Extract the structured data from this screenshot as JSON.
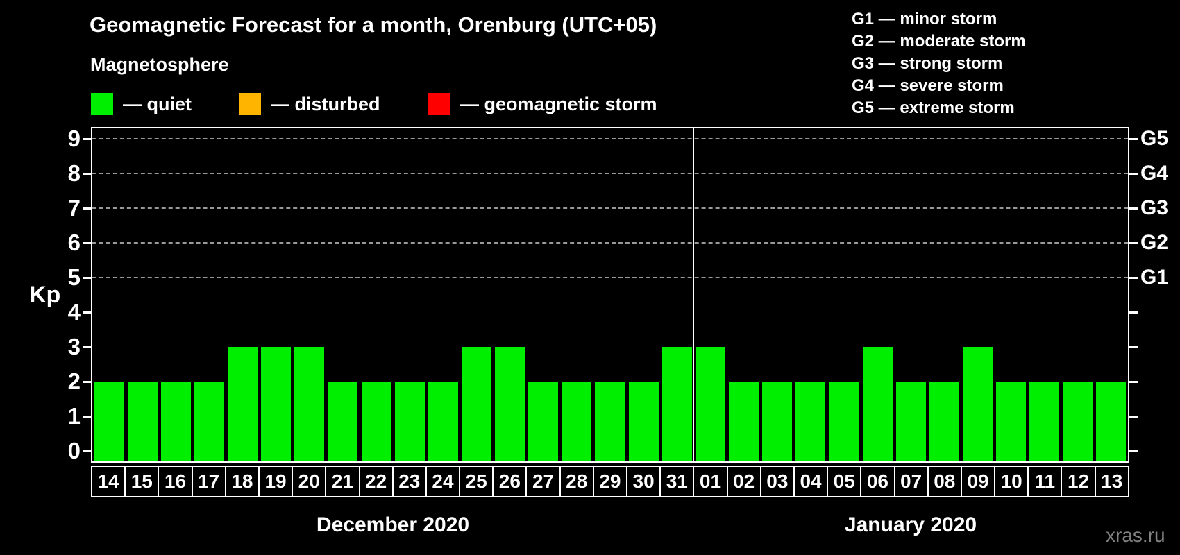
{
  "header": {
    "title": "Geomagnetic Forecast for a month, Orenburg (UTC+05)",
    "subtitle": "Magnetosphere"
  },
  "legend": {
    "items": [
      {
        "name": "quiet",
        "label": "— quiet",
        "color": "#00ee00"
      },
      {
        "name": "disturbed",
        "label": "— disturbed",
        "color": "#ffb400"
      },
      {
        "name": "geomagnetic-storm",
        "label": "— geomagnetic storm",
        "color": "#ff0000"
      }
    ],
    "g_levels": [
      {
        "label": "G1 — minor storm"
      },
      {
        "label": "G2 — moderate storm"
      },
      {
        "label": "G3 — strong storm"
      },
      {
        "label": "G4 — severe storm"
      },
      {
        "label": "G5 — extreme storm"
      }
    ]
  },
  "chart_data": {
    "type": "bar",
    "title": "Geomagnetic Forecast for a month, Orenburg (UTC+05)",
    "ylabel": "Kp",
    "ylim": [
      0,
      9
    ],
    "yticks": [
      0,
      1,
      2,
      3,
      4,
      5,
      6,
      7,
      8,
      9
    ],
    "grid": "dashed horizontal lines only at G levels (Kp 5-9)",
    "grid_levels": [
      5,
      6,
      7,
      8,
      9
    ],
    "grid_color": "#999999",
    "right_axis_labels": [
      {
        "level": 5,
        "label": "G1"
      },
      {
        "level": 6,
        "label": "G2"
      },
      {
        "level": 7,
        "label": "G3"
      },
      {
        "level": 8,
        "label": "G4"
      },
      {
        "level": 9,
        "label": "G5"
      }
    ],
    "categories": [
      "14",
      "15",
      "16",
      "17",
      "18",
      "19",
      "20",
      "21",
      "22",
      "23",
      "24",
      "25",
      "26",
      "27",
      "28",
      "29",
      "30",
      "31",
      "01",
      "02",
      "03",
      "04",
      "05",
      "06",
      "07",
      "08",
      "09",
      "10",
      "11",
      "12",
      "13"
    ],
    "values": [
      2,
      2,
      2,
      2,
      3,
      3,
      3,
      2,
      2,
      2,
      2,
      3,
      3,
      2,
      2,
      2,
      2,
      3,
      3,
      2,
      2,
      2,
      2,
      3,
      2,
      2,
      3,
      2,
      2,
      2,
      2
    ],
    "bar_color": "#00ee00",
    "months": [
      {
        "label": "December 2020",
        "days": 18
      },
      {
        "label": "January 2020",
        "days": 13
      }
    ],
    "legend_position": "top-left"
  },
  "footer": {
    "watermark": "xras.ru"
  }
}
